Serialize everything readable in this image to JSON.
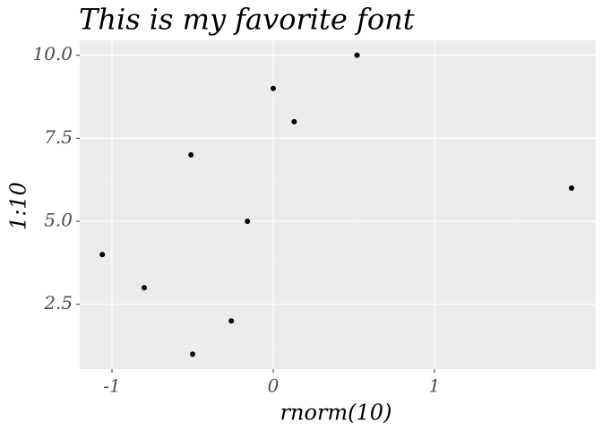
{
  "chart_data": {
    "type": "scatter",
    "title": "This is my favorite font",
    "x_label": "rnorm(10)",
    "y_label": "1:10",
    "x": [
      -0.5,
      -0.26,
      -0.8,
      -1.06,
      -0.16,
      1.85,
      -0.51,
      0.13,
      0.0,
      0.52
    ],
    "values": [
      1,
      2,
      3,
      4,
      5,
      6,
      7,
      8,
      9,
      10
    ],
    "color": "#000000",
    "xlim": [
      -1.2,
      2.0
    ],
    "xticks": [
      -1,
      0,
      1
    ],
    "ylim": [
      0.55,
      10.45
    ],
    "yticks": [
      2.5,
      {
        "value": 5,
        "label": "5.0"
      },
      7.5,
      {
        "value": 10,
        "label": "10.0"
      }
    ],
    "grid": true
  }
}
